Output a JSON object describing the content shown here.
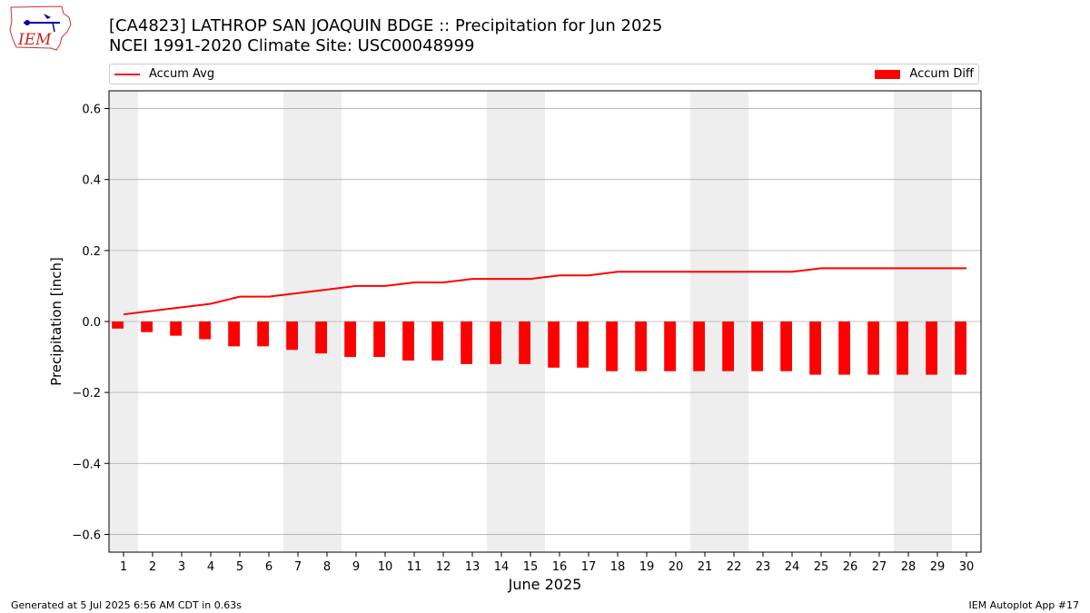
{
  "header": {
    "logo_text": "IEM",
    "title_line1": "[CA4823] LATHROP SAN JOAQUIN BDGE :: Precipitation for Jun 2025",
    "title_line2": "NCEI 1991-2020 Climate Site: USC00048999"
  },
  "legend": {
    "avg_label": "Accum Avg",
    "diff_label": "Accum Diff",
    "placement": "top, outside plot"
  },
  "footer": {
    "generated": "Generated at 5 Jul 2025 6:56 AM CDT in 0.63s",
    "app": "IEM Autoplot App #17"
  },
  "colors": {
    "series": "#ff0000",
    "weekend_shade": "#eeeeee",
    "grid": "#b0b0b0"
  },
  "chart_data": {
    "type": "bar",
    "xlabel": "June 2025",
    "ylabel": "Precipitation [inch]",
    "ylim": [
      -0.65,
      0.65
    ],
    "yticks": [
      -0.6,
      -0.4,
      -0.2,
      0.0,
      0.2,
      0.4,
      0.6
    ],
    "ytick_labels": [
      "−0.6",
      "−0.4",
      "−0.2",
      "0.0",
      "0.2",
      "0.4",
      "0.6"
    ],
    "xlim": [
      0.5,
      30.5
    ],
    "grid": "horizontal",
    "categories": [
      1,
      2,
      3,
      4,
      5,
      6,
      7,
      8,
      9,
      10,
      11,
      12,
      13,
      14,
      15,
      16,
      17,
      18,
      19,
      20,
      21,
      22,
      23,
      24,
      25,
      26,
      27,
      28,
      29,
      30
    ],
    "weekend_days": [
      1,
      7,
      8,
      14,
      15,
      21,
      22,
      28,
      29
    ],
    "series": [
      {
        "name": "Accum Avg",
        "kind": "line",
        "values": [
          0.02,
          0.03,
          0.04,
          0.05,
          0.07,
          0.07,
          0.08,
          0.09,
          0.1,
          0.1,
          0.11,
          0.11,
          0.12,
          0.12,
          0.12,
          0.13,
          0.13,
          0.14,
          0.14,
          0.14,
          0.14,
          0.14,
          0.14,
          0.14,
          0.15,
          0.15,
          0.15,
          0.15,
          0.15,
          0.15
        ]
      },
      {
        "name": "Accum Diff",
        "kind": "bar",
        "values": [
          -0.02,
          -0.03,
          -0.04,
          -0.05,
          -0.07,
          -0.07,
          -0.08,
          -0.09,
          -0.1,
          -0.1,
          -0.11,
          -0.11,
          -0.12,
          -0.12,
          -0.12,
          -0.13,
          -0.13,
          -0.14,
          -0.14,
          -0.14,
          -0.14,
          -0.14,
          -0.14,
          -0.14,
          -0.15,
          -0.15,
          -0.15,
          -0.15,
          -0.15,
          -0.15
        ]
      }
    ]
  }
}
